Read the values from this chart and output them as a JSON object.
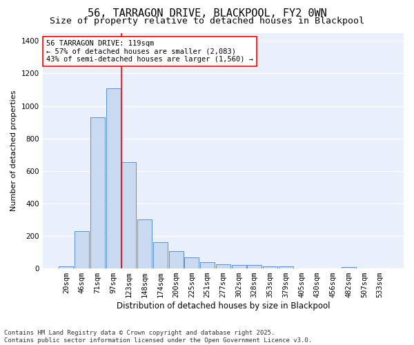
{
  "title": "56, TARRAGON DRIVE, BLACKPOOL, FY2 0WN",
  "subtitle": "Size of property relative to detached houses in Blackpool",
  "xlabel": "Distribution of detached houses by size in Blackpool",
  "ylabel": "Number of detached properties",
  "categories": [
    "20sqm",
    "46sqm",
    "71sqm",
    "97sqm",
    "123sqm",
    "148sqm",
    "174sqm",
    "200sqm",
    "225sqm",
    "251sqm",
    "277sqm",
    "302sqm",
    "328sqm",
    "353sqm",
    "379sqm",
    "405sqm",
    "430sqm",
    "456sqm",
    "482sqm",
    "507sqm",
    "533sqm"
  ],
  "values": [
    15,
    230,
    930,
    1110,
    655,
    300,
    160,
    105,
    68,
    38,
    25,
    22,
    20,
    15,
    12,
    0,
    0,
    0,
    8,
    0,
    0
  ],
  "bar_color": "#c9d9f0",
  "bar_edge_color": "#5b8fce",
  "vline_color": "red",
  "annotation_text": "56 TARRAGON DRIVE: 119sqm\n← 57% of detached houses are smaller (2,083)\n43% of semi-detached houses are larger (1,560) →",
  "annotation_box_color": "white",
  "annotation_box_edge_color": "red",
  "ylim": [
    0,
    1450
  ],
  "yticks": [
    0,
    200,
    400,
    600,
    800,
    1000,
    1200,
    1400
  ],
  "bg_color": "#eaf0fb",
  "grid_color": "white",
  "footer": "Contains HM Land Registry data © Crown copyright and database right 2025.\nContains public sector information licensed under the Open Government Licence v3.0.",
  "title_fontsize": 11,
  "subtitle_fontsize": 9.5,
  "xlabel_fontsize": 8.5,
  "ylabel_fontsize": 8,
  "tick_fontsize": 7.5,
  "annotation_fontsize": 7.5,
  "footer_fontsize": 6.5
}
